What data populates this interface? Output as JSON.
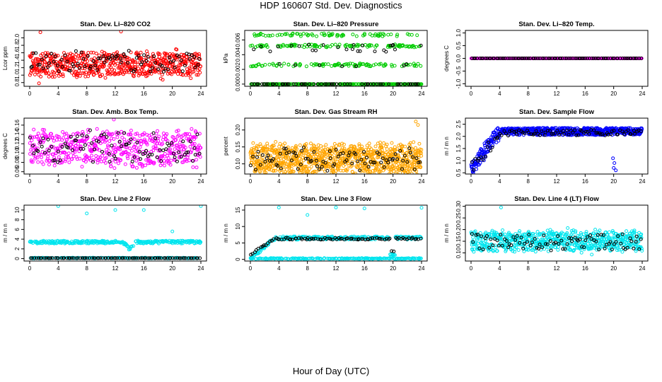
{
  "title": "HDP  160607  Std. Dev. Diagnostics",
  "xlabel": "Hour of Day (UTC)",
  "chart_data": [
    {
      "type": "scatter",
      "title": "Stan. Dev. Li–820 CO2",
      "ylabel": "Lcor ppm",
      "xlim": [
        0,
        24
      ],
      "ylim": [
        0.7,
        2.2
      ],
      "xticks": [
        0,
        4,
        8,
        12,
        16,
        20,
        24
      ],
      "yticks": [
        0.8,
        1.0,
        1.2,
        1.4,
        1.6,
        1.8,
        2.0
      ],
      "ytick_labels": [
        "0.8",
        "1.0",
        "1.2",
        "1.4",
        "1.6",
        "1.8",
        "2.0"
      ],
      "series": [
        {
          "name": "primary",
          "color": "#ff0000",
          "gen": "noise",
          "center": 1.3,
          "spread": 0.3,
          "n": 600,
          "outliers": [
            [
              1.5,
              2.15
            ],
            [
              12.8,
              2.17
            ],
            [
              1.3,
              0.78
            ]
          ]
        },
        {
          "name": "black",
          "color": "#000000",
          "gen": "noise",
          "center": 1.35,
          "spread": 0.25,
          "n": 90
        }
      ]
    },
    {
      "type": "scatter",
      "title": "Stan. Dev. Li–820 Pressure",
      "ylabel": "kPa",
      "xlim": [
        0,
        24
      ],
      "ylim": [
        -0.0003,
        0.0073
      ],
      "xticks": [
        0,
        4,
        8,
        12,
        16,
        20,
        24
      ],
      "yticks": [
        0,
        0.002,
        0.004,
        0.006
      ],
      "ytick_labels": [
        "0.000",
        "0.002",
        "0.004",
        "0.006"
      ],
      "series": [
        {
          "name": "primary",
          "color": "#00cc00",
          "gen": "levels",
          "levels": [
            0.0,
            0.0026,
            0.0052,
            0.0067
          ],
          "weights": [
            0.45,
            0.2,
            0.2,
            0.15
          ],
          "n": 520
        },
        {
          "name": "black",
          "color": "#000000",
          "gen": "levels",
          "levels": [
            0.0,
            0.0026,
            0.0046,
            0.0052
          ],
          "weights": [
            0.7,
            0.1,
            0.1,
            0.1
          ],
          "n": 90
        }
      ]
    },
    {
      "type": "scatter",
      "title": "Stan. Dev. Li–820 Temp.",
      "ylabel": "degrees C",
      "xlim": [
        0,
        24
      ],
      "ylim": [
        -1.1,
        1.1
      ],
      "xticks": [
        0,
        4,
        8,
        12,
        16,
        20,
        24
      ],
      "yticks": [
        -1.0,
        -0.5,
        0.0,
        0.5,
        1.0
      ],
      "ytick_labels": [
        "-1.0",
        "-0.5",
        "0.0",
        "0.5",
        "1.0"
      ],
      "series": [
        {
          "name": "primary",
          "color": "#ff00ff",
          "gen": "flat",
          "value": 0.0,
          "n": 300
        },
        {
          "name": "black",
          "color": "#000000",
          "gen": "flat",
          "value": 0.0,
          "n": 90
        }
      ]
    },
    {
      "type": "scatter",
      "title": "Stan. Dev. Amb. Box Temp.",
      "ylabel": "degrees C",
      "xlim": [
        0,
        24
      ],
      "ylim": [
        0.055,
        0.175
      ],
      "xticks": [
        0,
        4,
        8,
        12,
        16,
        20,
        24
      ],
      "yticks": [
        0.06,
        0.08,
        0.1,
        0.12,
        0.14,
        0.16
      ],
      "ytick_labels": [
        "0.06",
        "0.08",
        "0.10",
        "0.12",
        "0.14",
        "0.16"
      ],
      "series": [
        {
          "name": "primary",
          "color": "#ff00ff",
          "gen": "noise",
          "center": 0.11,
          "spread": 0.035,
          "n": 520,
          "outliers": [
            [
              11.8,
              0.172
            ]
          ]
        },
        {
          "name": "black",
          "color": "#000000",
          "gen": "noise",
          "center": 0.11,
          "spread": 0.03,
          "n": 90
        }
      ]
    },
    {
      "type": "scatter",
      "title": "Stan. Dev. Gas Stream RH",
      "ylabel": "percent",
      "xlim": [
        0,
        24
      ],
      "ylim": [
        0.07,
        0.235
      ],
      "xticks": [
        0,
        4,
        8,
        12,
        16,
        20,
        24
      ],
      "yticks": [
        0.1,
        0.15,
        0.2
      ],
      "ytick_labels": [
        "0.10",
        "0.15",
        "0.20"
      ],
      "series": [
        {
          "name": "primary",
          "color": "#ffa500",
          "gen": "noise",
          "center": 0.115,
          "spread": 0.04,
          "n": 900,
          "outliers": [
            [
              23.2,
              0.225
            ],
            [
              23.5,
              0.215
            ]
          ]
        },
        {
          "name": "black",
          "color": "#000000",
          "gen": "noise",
          "center": 0.115,
          "spread": 0.03,
          "n": 90
        }
      ]
    },
    {
      "type": "scatter",
      "title": "Stan. Dev. Sample Flow",
      "ylabel": "m / m n",
      "xlim": [
        0,
        24
      ],
      "ylim": [
        0.45,
        2.75
      ],
      "xticks": [
        0,
        4,
        8,
        12,
        16,
        20,
        24
      ],
      "yticks": [
        0.5,
        1.0,
        1.5,
        2.0,
        2.5
      ],
      "ytick_labels": [
        "0.5",
        "1.0",
        "1.5",
        "2.0",
        "2.5"
      ],
      "series": [
        {
          "name": "primary",
          "color": "#0000ff",
          "gen": "ramp",
          "center": 2.2,
          "spread": 0.15,
          "n": 650,
          "outliers": [
            [
              20.0,
              0.7
            ],
            [
              20.3,
              0.6
            ],
            [
              20.1,
              0.9
            ],
            [
              19.9,
              1.1
            ],
            [
              0.3,
              0.55
            ]
          ]
        },
        {
          "name": "black",
          "color": "#000000",
          "gen": "ramp",
          "center": 2.15,
          "spread": 0.12,
          "n": 90
        }
      ]
    },
    {
      "type": "scatter",
      "title": "Stan. Dev. Line 2 Flow",
      "ylabel": "m / m n",
      "xlim": [
        0,
        24
      ],
      "ylim": [
        -0.5,
        11
      ],
      "xticks": [
        0,
        4,
        8,
        12,
        16,
        20,
        24
      ],
      "yticks": [
        0,
        2,
        4,
        6,
        8,
        10
      ],
      "ytick_labels": [
        "0",
        "2",
        "4",
        "6",
        "8",
        "10"
      ],
      "series": [
        {
          "name": "primary",
          "color": "#00e5ee",
          "gen": "band",
          "center": 3.4,
          "spread": 0.3,
          "n": 450,
          "dip": [
            14,
            1.5
          ],
          "outliers": [
            [
              4,
              10.8
            ],
            [
              8,
              9.3
            ],
            [
              12,
              10
            ],
            [
              16,
              10
            ],
            [
              20,
              5.6
            ],
            [
              24,
              10.8
            ]
          ]
        },
        {
          "name": "black",
          "color": "#000000",
          "gen": "flat",
          "value": 0.1,
          "n": 90
        }
      ]
    },
    {
      "type": "scatter",
      "title": "Stan. Dev. Line 3 Flow",
      "ylabel": "m / m n",
      "xlim": [
        0,
        24
      ],
      "ylim": [
        -0.5,
        16.5
      ],
      "xticks": [
        0,
        4,
        8,
        12,
        16,
        20,
        24
      ],
      "yticks": [
        0,
        5,
        10,
        15
      ],
      "ytick_labels": [
        "0",
        "5",
        "10",
        "15"
      ],
      "series": [
        {
          "name": "primary",
          "color": "#00e5ee",
          "gen": "step",
          "center": 6.5,
          "spread": 0.5,
          "n": 450,
          "low": 0.2,
          "outliers": [
            [
              4,
              15.8
            ],
            [
              8,
              13.5
            ],
            [
              12,
              15.8
            ],
            [
              16,
              15.5
            ],
            [
              24,
              15.7
            ]
          ]
        },
        {
          "name": "black",
          "color": "#000000",
          "gen": "step",
          "center": 6.3,
          "spread": 0.3,
          "n": 90,
          "low": 1.5
        }
      ]
    },
    {
      "type": "scatter",
      "title": "Stan. Dev. Line 4 (LT) Flow",
      "ylabel": "m / m n",
      "xlim": [
        0,
        24
      ],
      "ylim": [
        0.065,
        0.305
      ],
      "xticks": [
        0,
        4,
        8,
        12,
        16,
        20,
        24
      ],
      "yticks": [
        0.1,
        0.15,
        0.2,
        0.25,
        0.3
      ],
      "ytick_labels": [
        "0.10",
        "0.15",
        "0.20",
        "0.25",
        "0.30"
      ],
      "series": [
        {
          "name": "primary",
          "color": "#00e5ee",
          "gen": "noise",
          "center": 0.15,
          "spread": 0.04,
          "n": 650,
          "outliers": [
            [
              4.2,
              0.295
            ]
          ]
        },
        {
          "name": "black",
          "color": "#000000",
          "gen": "noise",
          "center": 0.145,
          "spread": 0.035,
          "n": 90
        }
      ]
    }
  ]
}
